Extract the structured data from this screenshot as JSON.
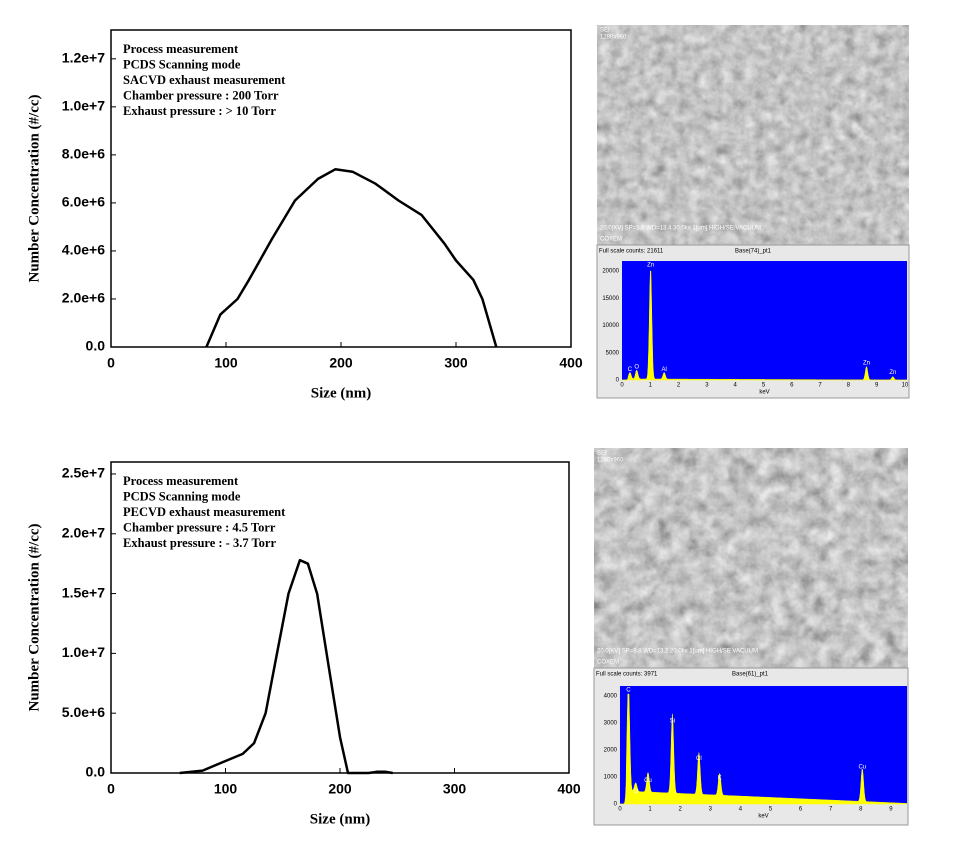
{
  "chart_data": [
    {
      "type": "line",
      "x_label": "Size (nm)",
      "y_label": "Number Concentration (#/cc)",
      "annotation": [
        "Process measurement",
        "PCDS Scanning mode",
        "SACVD exhaust measurement",
        "Chamber pressure : 200 Torr",
        "Exhaust pressure : > 10 Torr"
      ],
      "x": [
        83,
        95,
        110,
        120,
        140,
        160,
        180,
        195,
        210,
        230,
        250,
        270,
        290,
        300,
        315,
        323,
        335
      ],
      "series": [
        {
          "name": "SACVD",
          "color": "#000000",
          "values": [
            0,
            1350000,
            2000000,
            2800000,
            4500000,
            6100000,
            7000000,
            7400000,
            7300000,
            6800000,
            6100000,
            5500000,
            4300000,
            3600000,
            2800000,
            2000000,
            0
          ]
        }
      ],
      "xlim": [
        0,
        400
      ],
      "xticks": [
        0,
        100,
        200,
        300,
        400
      ],
      "ylim": [
        0,
        13200000
      ],
      "yticks": [
        {
          "value": 0,
          "label": "0.0"
        },
        {
          "value": 2000000,
          "label": "2.0e+6"
        },
        {
          "value": 4000000,
          "label": "4.0e+6"
        },
        {
          "value": 6000000,
          "label": "6.0e+6"
        },
        {
          "value": 8000000,
          "label": "8.0e+6"
        },
        {
          "value": 10000000,
          "label": "1.0e+7"
        },
        {
          "value": 12000000,
          "label": "1.2e+7"
        }
      ]
    },
    {
      "type": "line",
      "x_label": "Size (nm)",
      "y_label": "Number Concentration (#/cc)",
      "annotation": [
        "Process measurement",
        "PCDS Scanning mode",
        "PECVD exhaust measurement",
        "Chamber pressure : 4.5 Torr",
        "Exhaust pressure : - 3.7 Torr"
      ],
      "x": [
        60,
        80,
        100,
        115,
        125,
        135,
        145,
        155,
        165,
        172,
        180,
        190,
        200,
        207,
        225,
        232,
        240,
        246
      ],
      "series": [
        {
          "name": "PECVD",
          "color": "#000000",
          "values": [
            0,
            200000,
            1000000,
            1600000,
            2500000,
            5000000,
            10000000,
            15000000,
            17800000,
            17500000,
            15000000,
            9000000,
            3000000,
            0,
            0,
            100000,
            100000,
            0
          ]
        }
      ],
      "xlim": [
        0,
        400
      ],
      "xticks": [
        0,
        100,
        200,
        300,
        400
      ],
      "ylim": [
        0,
        26000000
      ],
      "yticks": [
        {
          "value": 0,
          "label": "0.0"
        },
        {
          "value": 5000000,
          "label": "5.0e+6"
        },
        {
          "value": 10000000,
          "label": "1.0e+7"
        },
        {
          "value": 15000000,
          "label": "1.5e+7"
        },
        {
          "value": 20000000,
          "label": "2.0e+7"
        },
        {
          "value": 25000000,
          "label": "2.5e+7"
        }
      ]
    }
  ],
  "images": [
    {
      "sem_header": [
        "SEI",
        "1280x960"
      ],
      "sem_info": "20.0[KV]   SP=5.0   WD=13.4  30.0kx     1[um]        HIGH/SE VACUUM",
      "sem_footer": "COXEM",
      "eds_header": [
        "Full scale counts: 21611",
        "Base(74)_pt1"
      ],
      "eds_yticks": [
        "20000",
        "15000",
        "10000",
        "5000",
        "0"
      ],
      "eds_xticks": [
        "0",
        "1",
        "2",
        "3",
        "4",
        "5",
        "6",
        "7",
        "8",
        "9",
        "10"
      ],
      "eds_xlabel": "keV",
      "eds_peaks": [
        "C",
        "O",
        "Zn",
        "Al",
        "Zn",
        "Zn"
      ]
    },
    {
      "sem_header": [
        "SEI",
        "1280x960"
      ],
      "sem_info": "20.0[KV]   SP=9.8   WD=13.2  20.0kx     1[um]        HIGH/SE VACUUM",
      "sem_footer": "COXEM",
      "eds_header": [
        "Full scale counts: 3971",
        "Base(61)_pt1"
      ],
      "eds_yticks": [
        "4000",
        "3000",
        "2000",
        "1000",
        "0"
      ],
      "eds_xticks": [
        "0",
        "1",
        "2",
        "3",
        "4",
        "5",
        "6",
        "7",
        "8",
        "9"
      ],
      "eds_xlabel": "keV",
      "eds_peaks": [
        "C",
        "O",
        "Cu",
        "Si",
        "Cl",
        "K",
        "Cu"
      ]
    }
  ]
}
